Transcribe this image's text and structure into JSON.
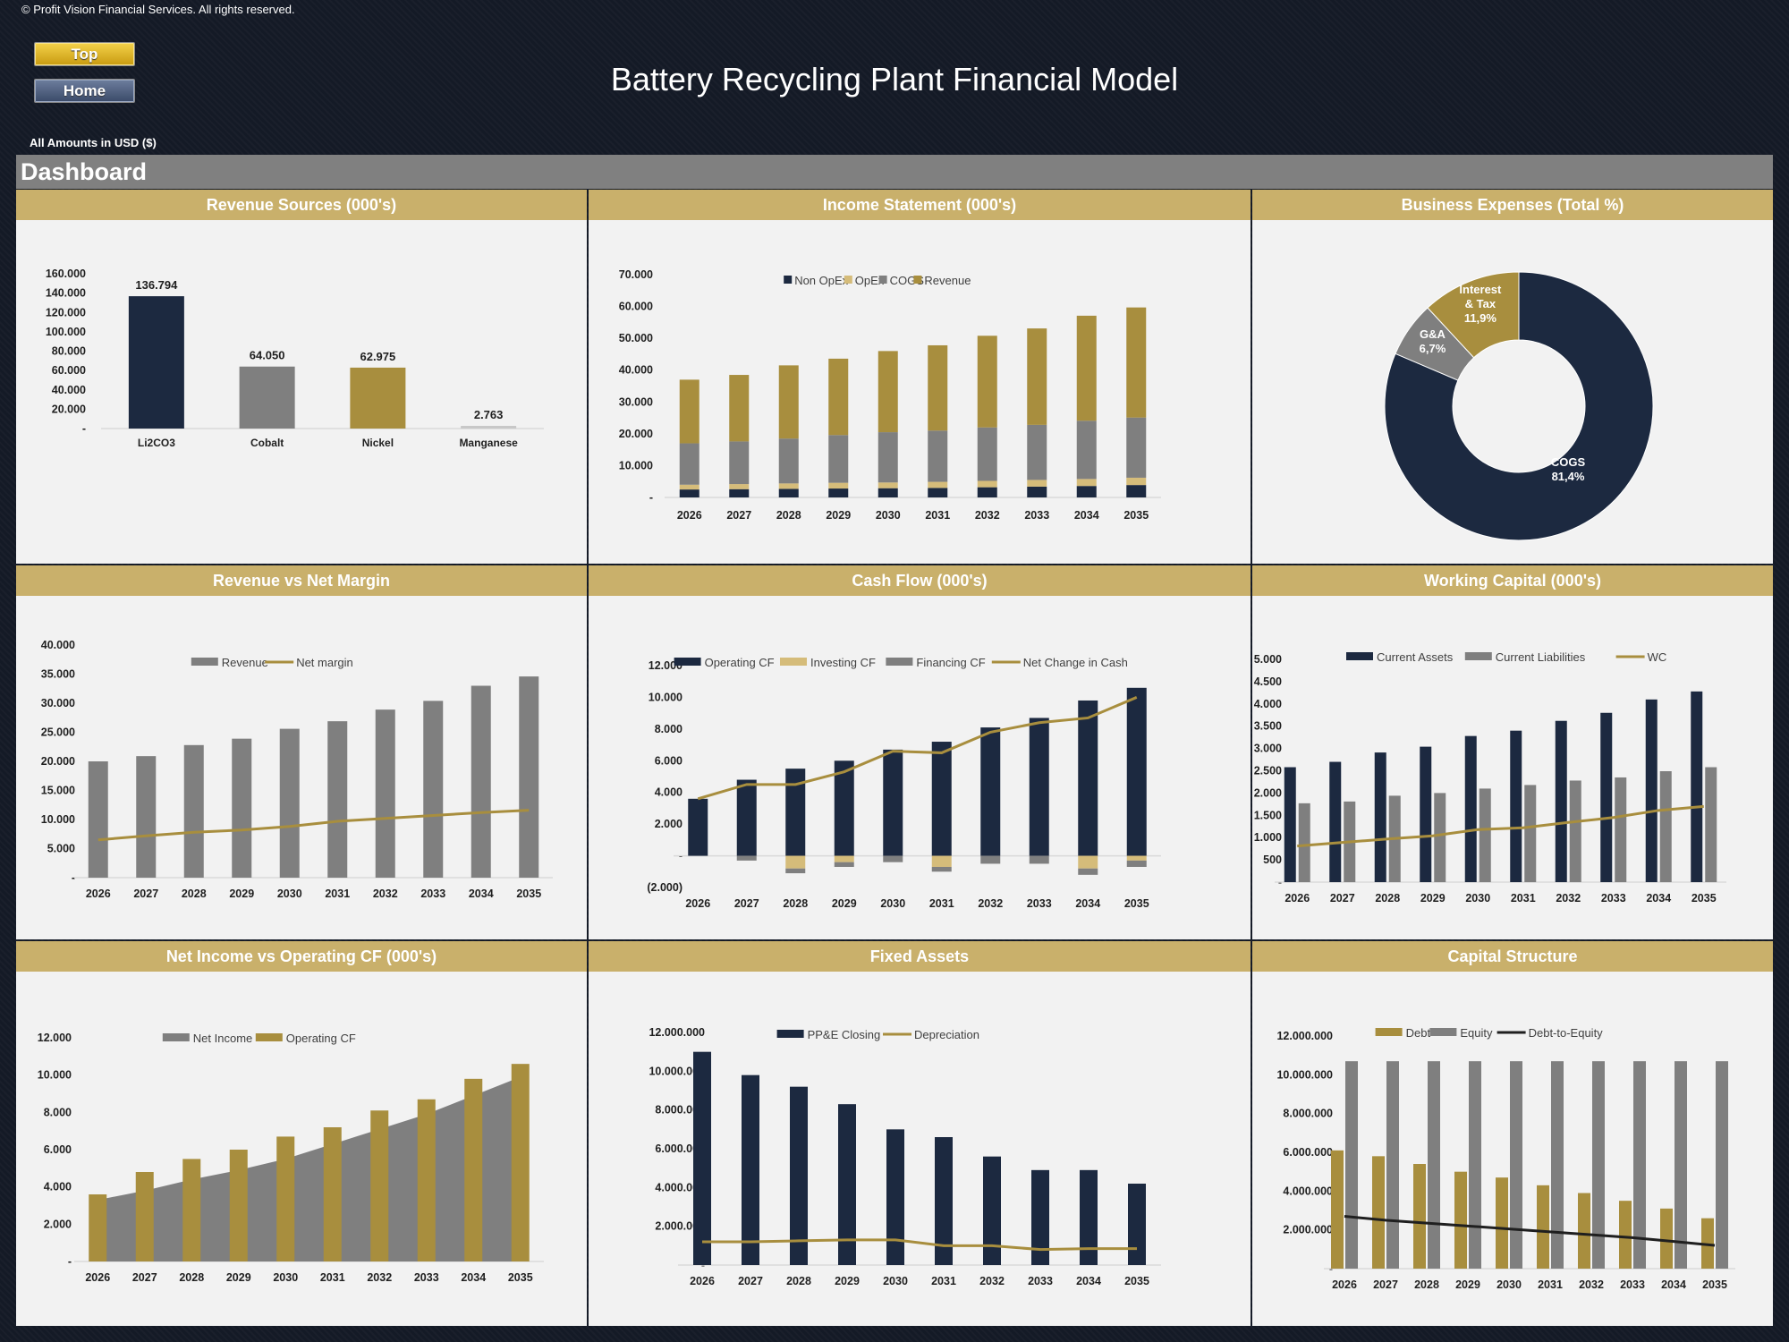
{
  "copyright": "© Profit Vision Financial Services. All rights reserved.",
  "nav": {
    "top_label": "Top",
    "home_label": "Home"
  },
  "title": "Battery Recycling Plant Financial Model",
  "amounts_note": "All Amounts in  USD ($)",
  "section_title": "Dashboard",
  "panels": {
    "revenue_sources": "Revenue Sources (000's)",
    "income_statement": "Income Statement (000's)",
    "business_expenses": "Business Expenses (Total %)",
    "revenue_vs_margin": "Revenue vs Net Margin",
    "cash_flow": "Cash Flow (000's)",
    "working_capital": "Working Capital (000's)",
    "ni_vs_ocf": "Net Income vs Operating CF (000's)",
    "fixed_assets": "Fixed Assets",
    "capital_structure": "Capital Structure"
  },
  "chart_data": [
    {
      "id": "revenue_sources",
      "type": "bar",
      "categories": [
        "Li2CO3",
        "Cobalt",
        "Nickel",
        "Manganese"
      ],
      "values": [
        136.794,
        64.05,
        62.975,
        2.763
      ],
      "data_labels": [
        "136.794",
        "64.050",
        "62.975",
        "2.763"
      ],
      "colors": [
        "#1c2940",
        "#7f7f7f",
        "#a88e3e",
        "#c8c8c8"
      ],
      "ylim": [
        0,
        160
      ],
      "yticks": [
        "-",
        "20.000",
        "40.000",
        "60.000",
        "80.000",
        "100.000",
        "120.000",
        "140.000",
        "160.000"
      ]
    },
    {
      "id": "income_statement",
      "type": "bar",
      "stacked": true,
      "categories": [
        "2026",
        "2027",
        "2028",
        "2029",
        "2030",
        "2031",
        "2032",
        "2033",
        "2034",
        "2035"
      ],
      "series": [
        {
          "name": "Non OpEx",
          "color": "#1c2940",
          "values": [
            2.5,
            2.6,
            2.7,
            2.8,
            2.9,
            3.0,
            3.2,
            3.4,
            3.6,
            3.9
          ]
        },
        {
          "name": "OpEx",
          "color": "#d5bc7a",
          "values": [
            1.5,
            1.6,
            1.7,
            1.8,
            1.8,
            1.9,
            2.0,
            2.1,
            2.2,
            2.3
          ]
        },
        {
          "name": "COGS",
          "color": "#7f7f7f",
          "values": [
            13,
            13.4,
            14.1,
            15,
            15.8,
            16.1,
            16.8,
            17.3,
            18.3,
            18.9
          ]
        },
        {
          "name": "Revenue",
          "color": "#a88e3e",
          "values": [
            20,
            20.9,
            23,
            24,
            25.5,
            26.8,
            28.8,
            30.3,
            33,
            34.6
          ]
        }
      ],
      "ylim": [
        0,
        70
      ],
      "yticks": [
        "-",
        "10.000",
        "20.000",
        "30.000",
        "40.000",
        "50.000",
        "60.000",
        "70.000"
      ]
    },
    {
      "id": "business_expenses",
      "type": "pie",
      "slices": [
        {
          "name": "COGS",
          "value": 81.4,
          "label": "COGS\n81,4%",
          "color": "#1c2940"
        },
        {
          "name": "G&A",
          "value": 6.7,
          "label": "G&A\n6,7%",
          "color": "#7f7f7f"
        },
        {
          "name": "Interest & Tax",
          "value": 11.9,
          "label": "Interest\n& Tax\n11,9%",
          "color": "#a88e3e"
        }
      ]
    },
    {
      "id": "revenue_vs_margin",
      "type": "bar",
      "categories": [
        "2026",
        "2027",
        "2028",
        "2029",
        "2030",
        "2031",
        "2032",
        "2033",
        "2034",
        "2035"
      ],
      "series": [
        {
          "name": "Revenue",
          "kind": "bar",
          "color": "#7f7f7f",
          "values": [
            20000,
            20900,
            22800,
            23900,
            25600,
            26900,
            28900,
            30400,
            33000,
            34600
          ]
        },
        {
          "name": "Net margin",
          "kind": "line",
          "color": "#a88e3e",
          "values": [
            6500,
            7200,
            7800,
            8200,
            8800,
            9700,
            10200,
            10700,
            11200,
            11600
          ]
        }
      ],
      "ylim": [
        0,
        40000
      ],
      "yticks": [
        "-",
        "5.000",
        "10.000",
        "15.000",
        "20.000",
        "25.000",
        "30.000",
        "35.000",
        "40.000"
      ]
    },
    {
      "id": "cash_flow",
      "type": "bar",
      "categories": [
        "2026",
        "2027",
        "2028",
        "2029",
        "2030",
        "2031",
        "2032",
        "2033",
        "2034",
        "2035"
      ],
      "series": [
        {
          "name": "Operating CF",
          "kind": "bar",
          "color": "#1c2940",
          "values": [
            3600,
            4800,
            5500,
            6000,
            6700,
            7200,
            8100,
            8700,
            9800,
            10600
          ]
        },
        {
          "name": "Investing CF",
          "kind": "bar",
          "color": "#d5bc7a",
          "values": [
            0,
            0,
            -800,
            -400,
            0,
            -700,
            0,
            0,
            -800,
            -300
          ]
        },
        {
          "name": "Financing CF",
          "kind": "bar",
          "color": "#7f7f7f",
          "values": [
            0,
            -300,
            -300,
            -300,
            -400,
            -300,
            -500,
            -500,
            -400,
            -400
          ]
        },
        {
          "name": "Net Change in Cash",
          "kind": "line",
          "color": "#a88e3e",
          "values": [
            3600,
            4500,
            4500,
            5300,
            6600,
            6500,
            7800,
            8400,
            8700,
            10000
          ]
        }
      ],
      "ylim": [
        -2000,
        12000
      ],
      "yticks": [
        "(2.000)",
        "-",
        "2.000",
        "4.000",
        "6.000",
        "8.000",
        "10.000",
        "12.000"
      ]
    },
    {
      "id": "working_capital",
      "type": "bar",
      "categories": [
        "2026",
        "2027",
        "2028",
        "2029",
        "2030",
        "2031",
        "2032",
        "2033",
        "2034",
        "2035"
      ],
      "series": [
        {
          "name": "Current Assets",
          "kind": "bar",
          "color": "#1c2940",
          "values": [
            2580,
            2700,
            2910,
            3040,
            3280,
            3400,
            3620,
            3800,
            4100,
            4280
          ]
        },
        {
          "name": "Current Liabilities",
          "kind": "bar",
          "color": "#7f7f7f",
          "values": [
            1770,
            1810,
            1940,
            2000,
            2100,
            2180,
            2280,
            2350,
            2490,
            2580
          ]
        },
        {
          "name": "WC",
          "kind": "line",
          "color": "#a88e3e",
          "values": [
            810,
            890,
            970,
            1040,
            1180,
            1220,
            1340,
            1450,
            1610,
            1700
          ]
        }
      ],
      "ylim": [
        0,
        5000
      ],
      "yticks": [
        "-",
        "500",
        "1.000",
        "1.500",
        "2.000",
        "2.500",
        "3.000",
        "3.500",
        "4.000",
        "4.500",
        "5.000"
      ]
    },
    {
      "id": "ni_vs_ocf",
      "type": "area",
      "categories": [
        "2026",
        "2027",
        "2028",
        "2029",
        "2030",
        "2031",
        "2032",
        "2033",
        "2034",
        "2035"
      ],
      "series": [
        {
          "name": "Net Income",
          "kind": "area",
          "color": "#7f7f7f",
          "values": [
            3300,
            3800,
            4400,
            4900,
            5500,
            6300,
            7100,
            7900,
            8900,
            9900
          ]
        },
        {
          "name": "Operating CF",
          "kind": "bar",
          "color": "#a88e3e",
          "values": [
            3600,
            4800,
            5500,
            6000,
            6700,
            7200,
            8100,
            8700,
            9800,
            10600
          ]
        }
      ],
      "ylim": [
        0,
        12000
      ],
      "yticks": [
        "-",
        "2.000",
        "4.000",
        "6.000",
        "8.000",
        "10.000",
        "12.000"
      ]
    },
    {
      "id": "fixed_assets",
      "type": "bar",
      "categories": [
        "2026",
        "2027",
        "2028",
        "2029",
        "2030",
        "2031",
        "2032",
        "2033",
        "2034",
        "2035"
      ],
      "series": [
        {
          "name": "PP&E Closing",
          "kind": "bar",
          "color": "#1c2940",
          "values": [
            11000000,
            9800000,
            9200000,
            8300000,
            7000000,
            6600000,
            5600000,
            4900000,
            4900000,
            4200000
          ]
        },
        {
          "name": "Depreciation",
          "kind": "line",
          "color": "#a88e3e",
          "values": [
            1200000,
            1200000,
            1250000,
            1300000,
            1300000,
            1000000,
            1000000,
            800000,
            850000,
            850000
          ]
        }
      ],
      "ylim": [
        0,
        12000000
      ],
      "yticks": [
        "-",
        "2.000.000",
        "4.000.000",
        "6.000.000",
        "8.000.000",
        "10.000.000",
        "12.000.000"
      ]
    },
    {
      "id": "capital_structure",
      "type": "bar",
      "categories": [
        "2026",
        "2027",
        "2028",
        "2029",
        "2030",
        "2031",
        "2032",
        "2033",
        "2034",
        "2035"
      ],
      "series": [
        {
          "name": "Debt",
          "kind": "bar",
          "color": "#a88e3e",
          "values": [
            6100000,
            5800000,
            5400000,
            5000000,
            4700000,
            4300000,
            3900000,
            3500000,
            3100000,
            2600000
          ]
        },
        {
          "name": "Equity",
          "kind": "bar",
          "color": "#7f7f7f",
          "values": [
            10700000,
            10700000,
            10700000,
            10700000,
            10700000,
            10700000,
            10700000,
            10700000,
            10700000,
            10700000
          ]
        },
        {
          "name": "Debt-to-Equity",
          "kind": "line",
          "color": "#1f1f1f",
          "values": [
            2700000,
            2500000,
            2350000,
            2200000,
            2050000,
            1900000,
            1750000,
            1600000,
            1400000,
            1200000
          ]
        }
      ],
      "ylim": [
        0,
        12000000
      ],
      "yticks": [
        "-",
        "2.000.000",
        "4.000.000",
        "6.000.000",
        "8.000.000",
        "10.000.000",
        "12.000.000"
      ]
    }
  ]
}
